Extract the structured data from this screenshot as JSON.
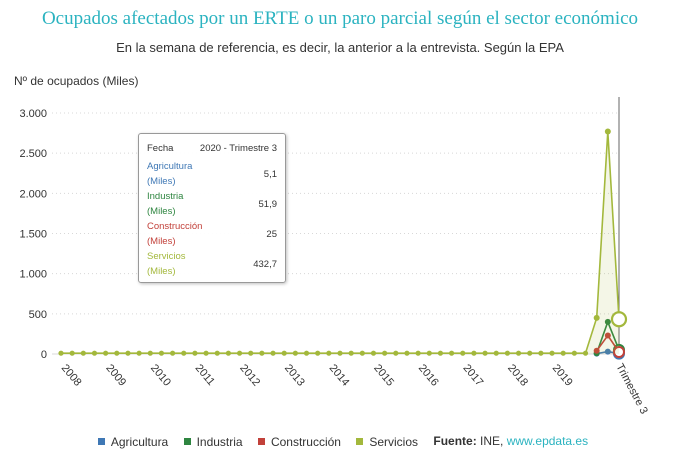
{
  "header": {
    "title": "Ocupados afectados por un ERTE o un paro parcial según el sector económico",
    "subtitle": "En la semana de referencia, es decir, la anterior a la entrevista. Según la EPA"
  },
  "tooltip": {
    "header_label": "Fecha",
    "header_value": "2020 - Trimestre 3",
    "rows": [
      {
        "name": "Agricultura",
        "unit": "(Miles)",
        "value": "5,1",
        "color": "#3f78b5"
      },
      {
        "name": "Industria",
        "unit": "(Miles)",
        "value": "51,9",
        "color": "#2e8540"
      },
      {
        "name": "Construcción",
        "unit": "(Miles)",
        "value": "25",
        "color": "#c2413a"
      },
      {
        "name": "Servicios",
        "unit": "(Miles)",
        "value": "432,7",
        "color": "#a3b83c"
      }
    ]
  },
  "legend": {
    "items": [
      {
        "label": "Agricultura",
        "color": "#3f78b5"
      },
      {
        "label": "Industria",
        "color": "#2e8540"
      },
      {
        "label": "Construcción",
        "color": "#c2413a"
      },
      {
        "label": "Servicios",
        "color": "#a3b83c"
      }
    ],
    "source_label": "Fuente:",
    "source_text": "INE, ",
    "source_link": "www.epdata.es"
  },
  "chart_data": {
    "type": "line",
    "title": "Ocupados afectados por un ERTE o un paro parcial según el sector económico",
    "subtitle": "En la semana de referencia, es decir, la anterior a la entrevista. Según la EPA",
    "ylabel": "Nº de ocupados (Miles)",
    "xlabel": "",
    "ylim": [
      0,
      3000
    ],
    "yticks": [
      0,
      500,
      1000,
      1500,
      2000,
      2500,
      3000
    ],
    "ytick_labels": [
      "0",
      "500",
      "1.000",
      "1.500",
      "2.000",
      "2.500",
      "3.000"
    ],
    "x_start_year": 2008,
    "x_period_count": 51,
    "xtick_labels": [
      "2008",
      "2009",
      "2010",
      "2011",
      "2012",
      "2013",
      "2014",
      "2015",
      "2016",
      "2017",
      "2018",
      "2019"
    ],
    "highlight_label": "Trimestre 3",
    "highlight_index": 50,
    "grid": true,
    "series": [
      {
        "name": "Agricultura",
        "color": "#3f78b5",
        "points": [
          [
            48,
            5
          ],
          [
            49,
            30
          ],
          [
            50,
            5.1
          ]
        ]
      },
      {
        "name": "Industria",
        "color": "#2e8540",
        "points": [
          [
            48,
            10
          ],
          [
            49,
            400
          ],
          [
            50,
            51.9
          ]
        ]
      },
      {
        "name": "Construcción",
        "color": "#c2413a",
        "points": [
          [
            48,
            40
          ],
          [
            49,
            230
          ],
          [
            50,
            25
          ]
        ]
      },
      {
        "name": "Servicios",
        "color": "#a3b83c",
        "baseline": 10,
        "baseline_until": 47,
        "points": [
          [
            48,
            450
          ],
          [
            49,
            2770
          ],
          [
            50,
            432.7
          ]
        ]
      }
    ]
  }
}
